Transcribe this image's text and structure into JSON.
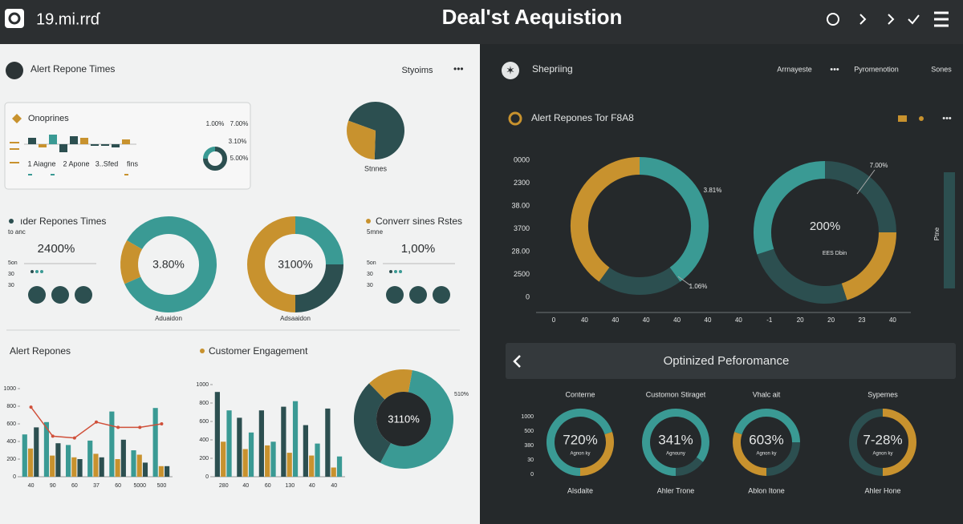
{
  "header": {
    "brand": "19.mi.rrɗ",
    "title": "Deal'st Aequistion"
  },
  "left": {
    "title": "Alert Repone Times",
    "menu": "Styoims",
    "card": {
      "title": "Onoprines",
      "labels": [
        "1 Aiagne",
        "2 Apone",
        "3..Sfed",
        "fins"
      ],
      "bars": {
        "values": [
          8,
          -4,
          12,
          -10,
          10,
          8,
          -2,
          -2,
          -4,
          6
        ],
        "colors": [
          "#2c4f50",
          "#c8922e",
          "#3a9a94",
          "#2c4f50",
          "#2c4f50",
          "#c8922e",
          "#2c4f50",
          "#2c4f50",
          "#2c4f50",
          "#c8922e"
        ]
      },
      "stats": [
        "1.00%",
        "7.00%",
        "3.10%",
        "5.00%"
      ],
      "ring": {
        "values": [
          75,
          25
        ],
        "colors": [
          "#2c4f50",
          "#3a9a94"
        ]
      }
    },
    "pie": {
      "label": "Stnnes",
      "values": [
        70,
        30
      ],
      "colors": [
        "#2c4f50",
        "#c8922e"
      ]
    },
    "kpi1": {
      "title": "ıder Repones Times",
      "sub": "to anc",
      "value": "2400%",
      "ticks": [
        "5on",
        "30",
        "30"
      ]
    },
    "donut1": {
      "center": "3.80%",
      "label": "Aduaidon",
      "values": [
        85,
        15
      ],
      "colors": [
        "#3a9a94",
        "#c8922e"
      ]
    },
    "donut2": {
      "center": "3100%",
      "label": "Adsaaidon",
      "values": [
        25,
        25,
        50
      ],
      "colors": [
        "#3a9a94",
        "#2c4f50",
        "#c8922e"
      ]
    },
    "kpi2": {
      "title": "Converr sines Rstes",
      "sub": "5mne",
      "value": "1,00%",
      "ticks": [
        "5on",
        "30",
        "30"
      ]
    },
    "bar_chart1": {
      "type": "bar",
      "title": "Alert Repones",
      "categories": [
        "40",
        "90",
        "60",
        "37",
        "60",
        "5000",
        "500"
      ],
      "ylim": [
        0,
        1000
      ],
      "yticks": [
        0,
        200,
        400,
        600,
        800,
        1000
      ],
      "series": [
        {
          "color": "#3a9a94",
          "values": [
            480,
            620,
            360,
            410,
            740,
            300,
            780
          ]
        },
        {
          "color": "#c8922e",
          "values": [
            320,
            240,
            220,
            260,
            200,
            250,
            120
          ]
        },
        {
          "color": "#2c4f50",
          "values": [
            560,
            380,
            200,
            220,
            420,
            160,
            120
          ]
        },
        {
          "type": "line",
          "color": "#d0503a",
          "values": [
            790,
            460,
            440,
            620,
            560,
            560,
            600
          ]
        }
      ]
    },
    "bar_chart2": {
      "type": "bar",
      "title": "Customer Engagement",
      "categories": [
        "280",
        "40",
        "60",
        "130",
        "40",
        "40"
      ],
      "ylim": [
        0,
        1000
      ],
      "yticks": [
        0,
        200,
        400,
        600,
        800,
        1000
      ],
      "series": [
        {
          "color": "#2c4f50",
          "values": [
            920,
            640,
            720,
            760,
            560,
            740
          ]
        },
        {
          "color": "#c8922e",
          "values": [
            380,
            300,
            340,
            260,
            230,
            100
          ]
        },
        {
          "color": "#3a9a94",
          "values": [
            720,
            480,
            380,
            820,
            360,
            220
          ]
        }
      ]
    },
    "big_donut": {
      "center": "3110%",
      "label": "510%",
      "values": [
        55,
        30,
        15
      ],
      "colors": [
        "#3a9a94",
        "#2c4f50",
        "#c8922e"
      ]
    }
  },
  "right": {
    "title": "Shepriing",
    "menu": [
      "Arrnayeste",
      "Pyromenotion",
      "Sones"
    ],
    "chart": {
      "title": "Alert Repones Tor F8A8",
      "y_labels": [
        "0000",
        "2300",
        "38.00",
        "3700",
        "28.00",
        "2500",
        "0"
      ],
      "x_labels": [
        "0",
        "40",
        "40",
        "40",
        "40",
        "40",
        "40",
        "-1",
        "20",
        "20",
        "23",
        "40"
      ],
      "donut1": {
        "labels": [
          "3.81%",
          "1.06%"
        ],
        "values": [
          40,
          20,
          40
        ],
        "colors": [
          "#3a9a94",
          "#2c4f50",
          "#c8922e"
        ]
      },
      "donut2": {
        "center": "200%",
        "sub": "EES Dbin",
        "label": "7.00%",
        "values": [
          25,
          20,
          25,
          30
        ],
        "colors": [
          "#2c4f50",
          "#c8922e",
          "#2c4f50",
          "#3a9a94"
        ]
      },
      "side": "Ptne"
    },
    "performance": {
      "title": "Optinized Peforomance",
      "y_labels": [
        "1000",
        "500",
        "380",
        "30",
        "0"
      ],
      "items": [
        {
          "title": "Conterne",
          "value": "720%",
          "sub": "Agnon ky",
          "label": "Alsdaite",
          "values": [
            70,
            30
          ],
          "colors": [
            "#3a9a94",
            "#c8922e"
          ]
        },
        {
          "title": "Customon Stiraget",
          "value": "341%",
          "sub": "Agnouny",
          "label": "Ahler Trone",
          "values": [
            85,
            15
          ],
          "colors": [
            "#3a9a94",
            "#2c4f50"
          ]
        },
        {
          "title": "Vhalc ait",
          "value": "603%",
          "sub": "Agnon ky",
          "label": "Ablon Itone",
          "values": [
            30,
            45,
            25
          ],
          "colors": [
            "#c8922e",
            "#3a9a94",
            "#2c4f50"
          ]
        },
        {
          "title": "Sypemes",
          "value": "7-28%",
          "sub": "Agnon ky",
          "label": "Ahler Hone",
          "values": [
            50,
            50
          ],
          "colors": [
            "#2c4f50",
            "#c8922e"
          ]
        }
      ]
    }
  }
}
